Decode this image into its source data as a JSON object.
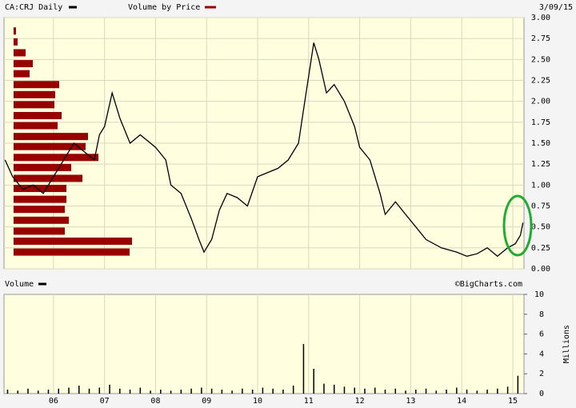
{
  "chart_data": [
    {
      "type": "line",
      "title": "CA:CRJ Daily",
      "subtitle": "3/09/15",
      "xlim": [
        2005.03,
        2015.22
      ],
      "ylim": [
        0,
        3
      ],
      "yticks": [
        {
          "value": 0,
          "label": "0.00"
        },
        {
          "value": 0.25,
          "label": "0.25"
        },
        {
          "value": 0.5,
          "label": "0.50"
        },
        {
          "value": 0.75,
          "label": "0.75"
        },
        {
          "value": 1,
          "label": "1.00"
        },
        {
          "value": 1.25,
          "label": "1.25"
        },
        {
          "value": 1.5,
          "label": "1.50"
        },
        {
          "value": 1.75,
          "label": "1.75"
        },
        {
          "value": 2,
          "label": "2.00"
        },
        {
          "value": 2.25,
          "label": "2.25"
        },
        {
          "value": 2.5,
          "label": "2.50"
        },
        {
          "value": 2.75,
          "label": "2.75"
        },
        {
          "value": 3,
          "label": "3.00"
        }
      ],
      "grid": true,
      "series": [
        {
          "name": "CA:CRJ Daily",
          "color": "#000000",
          "x": [
            2005.05,
            2005.2,
            2005.4,
            2005.6,
            2005.8,
            2006.0,
            2006.2,
            2006.4,
            2006.6,
            2006.8,
            2006.9,
            2007.0,
            2007.15,
            2007.3,
            2007.5,
            2007.7,
            2008.0,
            2008.2,
            2008.3,
            2008.5,
            2008.7,
            2008.85,
            2008.95,
            2009.1,
            2009.25,
            2009.4,
            2009.6,
            2009.8,
            2010.0,
            2010.2,
            2010.4,
            2010.6,
            2010.8,
            2010.95,
            2011.1,
            2011.2,
            2011.35,
            2011.5,
            2011.7,
            2011.9,
            2012.0,
            2012.2,
            2012.4,
            2012.5,
            2012.7,
            2012.9,
            2013.1,
            2013.3,
            2013.6,
            2013.9,
            2014.1,
            2014.3,
            2014.5,
            2014.7,
            2014.9,
            2015.05,
            2015.15,
            2015.2
          ],
          "values": [
            1.3,
            1.1,
            0.95,
            1.0,
            0.9,
            1.1,
            1.3,
            1.5,
            1.4,
            1.3,
            1.6,
            1.7,
            2.1,
            1.8,
            1.5,
            1.6,
            1.45,
            1.3,
            1.0,
            0.9,
            0.6,
            0.35,
            0.2,
            0.35,
            0.7,
            0.9,
            0.85,
            0.75,
            1.1,
            1.15,
            1.2,
            1.3,
            1.5,
            2.1,
            2.7,
            2.5,
            2.1,
            2.2,
            2.0,
            1.7,
            1.45,
            1.3,
            0.9,
            0.65,
            0.8,
            0.65,
            0.5,
            0.35,
            0.25,
            0.2,
            0.15,
            0.18,
            0.25,
            0.15,
            0.25,
            0.3,
            0.4,
            0.55
          ]
        }
      ],
      "volume_by_price": {
        "name": "Volume by Price",
        "color": "#990000",
        "levels": [
          2.84,
          2.71,
          2.58,
          2.45,
          2.33,
          2.2,
          2.08,
          1.96,
          1.83,
          1.71,
          1.58,
          1.46,
          1.33,
          1.21,
          1.08,
          0.96,
          0.83,
          0.71,
          0.58,
          0.45,
          0.33,
          0.2
        ],
        "values": [
          3,
          5,
          15,
          24,
          20,
          57,
          52,
          51,
          60,
          55,
          93,
          90,
          106,
          72,
          86,
          66,
          66,
          64,
          69,
          64,
          148,
          145
        ]
      }
    },
    {
      "type": "bar",
      "title": "Volume",
      "annotation": "©BigCharts.com",
      "ylabel": "Millions",
      "xlim": [
        2005.03,
        2015.22
      ],
      "ylim": [
        0,
        10
      ],
      "yticks": [
        0,
        2,
        4,
        6,
        8,
        10
      ],
      "xticks": [
        {
          "value": 2006,
          "label": "06"
        },
        {
          "value": 2007,
          "label": "07"
        },
        {
          "value": 2008,
          "label": "08"
        },
        {
          "value": 2009,
          "label": "09"
        },
        {
          "value": 2010,
          "label": "10"
        },
        {
          "value": 2011,
          "label": "11"
        },
        {
          "value": 2012,
          "label": "12"
        },
        {
          "value": 2013,
          "label": "13"
        },
        {
          "value": 2014,
          "label": "14"
        },
        {
          "value": 2015,
          "label": "15"
        }
      ],
      "color": "#000000",
      "x": [
        2005.1,
        2005.3,
        2005.5,
        2005.7,
        2005.9,
        2006.1,
        2006.3,
        2006.5,
        2006.7,
        2006.9,
        2007.1,
        2007.3,
        2007.5,
        2007.7,
        2007.9,
        2008.1,
        2008.3,
        2008.5,
        2008.7,
        2008.9,
        2009.1,
        2009.3,
        2009.5,
        2009.7,
        2009.9,
        2010.1,
        2010.3,
        2010.5,
        2010.7,
        2010.9,
        2011.1,
        2011.3,
        2011.5,
        2011.7,
        2011.9,
        2012.1,
        2012.3,
        2012.5,
        2012.7,
        2012.9,
        2013.1,
        2013.3,
        2013.5,
        2013.7,
        2013.9,
        2014.1,
        2014.3,
        2014.5,
        2014.7,
        2014.9,
        2015.1
      ],
      "values": [
        0.4,
        0.3,
        0.5,
        0.3,
        0.4,
        0.5,
        0.6,
        0.8,
        0.5,
        0.6,
        0.9,
        0.5,
        0.4,
        0.6,
        0.3,
        0.4,
        0.3,
        0.4,
        0.5,
        0.6,
        0.5,
        0.4,
        0.3,
        0.5,
        0.4,
        0.6,
        0.5,
        0.4,
        0.8,
        5.0,
        2.5,
        1.0,
        0.9,
        0.7,
        0.6,
        0.5,
        0.6,
        0.4,
        0.5,
        0.3,
        0.4,
        0.5,
        0.3,
        0.4,
        0.6,
        0.4,
        0.3,
        0.4,
        0.5,
        0.7,
        1.8
      ]
    }
  ]
}
